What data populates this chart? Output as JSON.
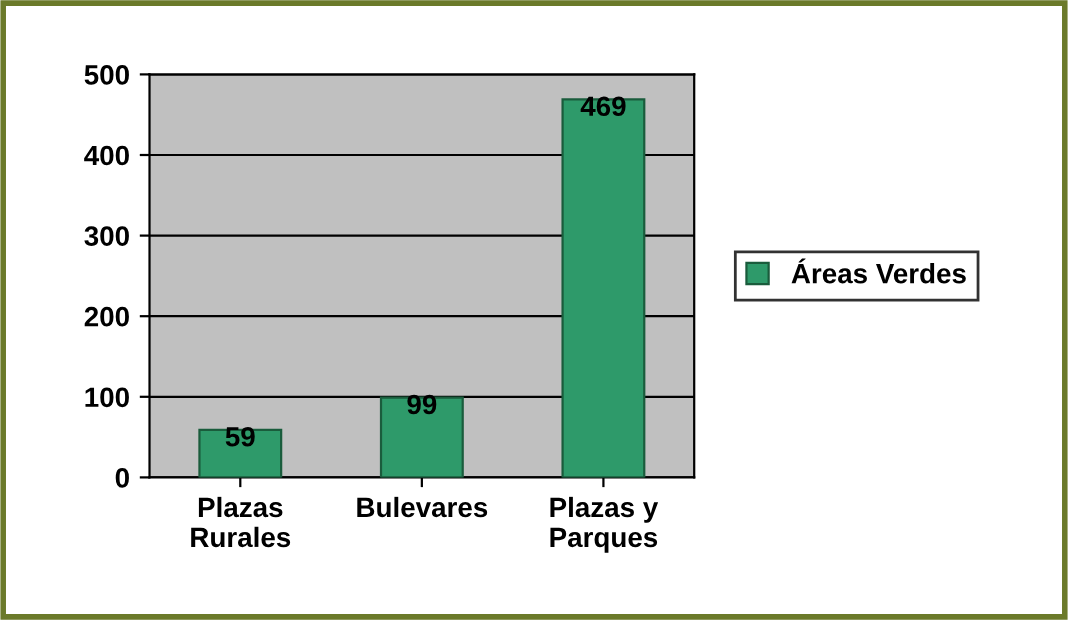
{
  "chart_data": {
    "type": "bar",
    "categories": [
      "Plazas\nRurales",
      "Bulevares",
      "Plazas y\nParques"
    ],
    "series": [
      {
        "name": "Áreas Verdes",
        "color": "#2e9a6a",
        "values": [
          59,
          99,
          469
        ]
      }
    ],
    "ylim": [
      0,
      500
    ],
    "yticks": [
      0,
      100,
      200,
      300,
      400,
      500
    ],
    "grid": "y",
    "legend": "right",
    "data_labels": true
  }
}
